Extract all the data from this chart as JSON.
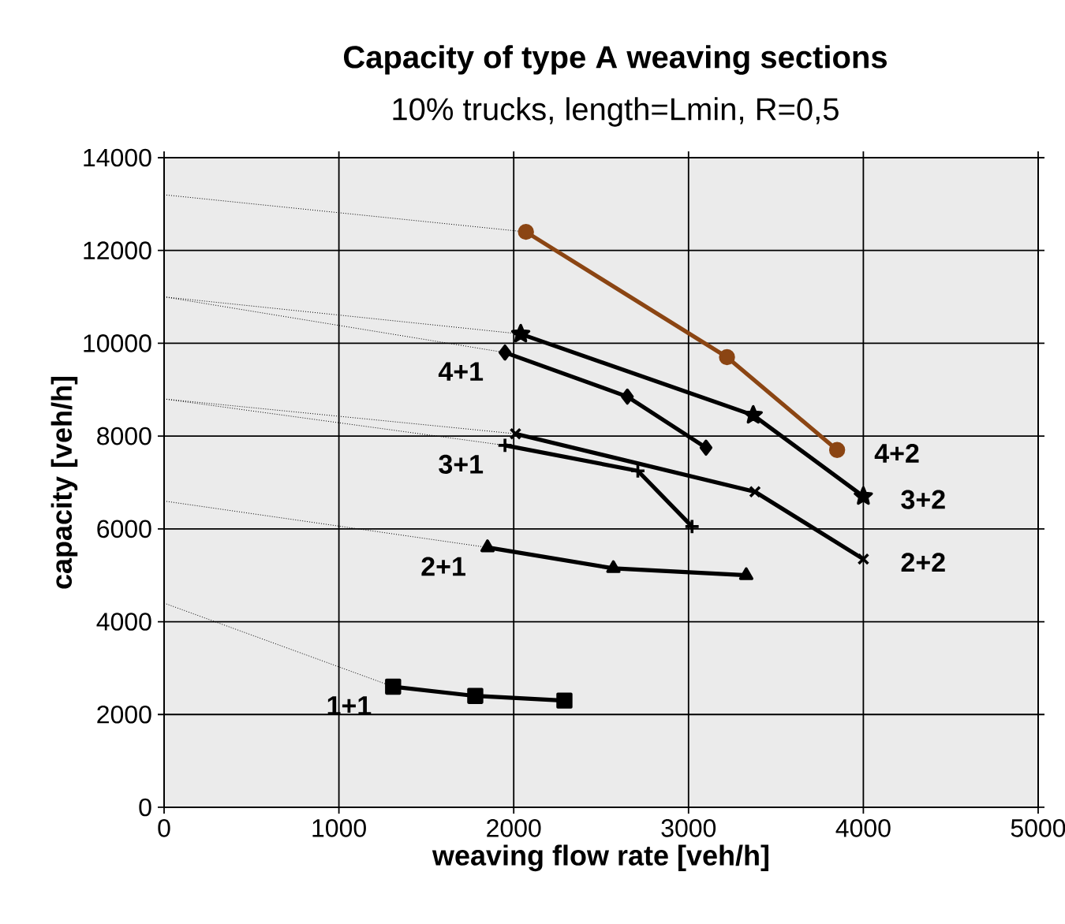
{
  "chart_data": {
    "type": "line",
    "title": "Capacity of type A weaving sections",
    "subtitle": "10% trucks, length=Lmin, R=0,5",
    "xlabel": "weaving flow rate [veh/h]",
    "ylabel": "capacity [veh/h]",
    "xlim": [
      0,
      5000
    ],
    "ylim": [
      0,
      14000
    ],
    "xticks": [
      0,
      1000,
      2000,
      3000,
      4000,
      5000
    ],
    "yticks": [
      0,
      2000,
      4000,
      6000,
      8000,
      10000,
      12000,
      14000
    ],
    "grid": true,
    "series": [
      {
        "name": "4+2",
        "color": "#8b4513",
        "marker": "circle",
        "line_style": "solid",
        "x": [
          2070,
          3220,
          3850
        ],
        "values": [
          12400,
          9700,
          7700
        ]
      },
      {
        "name": "3+2",
        "color": "#000000",
        "marker": "star",
        "line_style": "solid",
        "x": [
          2040,
          3370,
          4000
        ],
        "values": [
          10200,
          8450,
          6700
        ]
      },
      {
        "name": "4+1",
        "color": "#000000",
        "marker": "diamond",
        "line_style": "solid",
        "x": [
          1950,
          2650,
          3100
        ],
        "values": [
          9800,
          8850,
          7750
        ]
      },
      {
        "name": "2+2",
        "color": "#000000",
        "marker": "cross",
        "line_style": "solid",
        "x": [
          2010,
          3380,
          4000
        ],
        "values": [
          8050,
          6800,
          5350
        ]
      },
      {
        "name": "3+1",
        "color": "#000000",
        "marker": "plus",
        "line_style": "solid",
        "x": [
          1950,
          2710,
          3020
        ],
        "values": [
          7800,
          7250,
          6050
        ]
      },
      {
        "name": "2+1",
        "color": "#000000",
        "marker": "triangle",
        "line_style": "solid",
        "x": [
          1850,
          2570,
          3330
        ],
        "values": [
          5600,
          5150,
          5000
        ]
      },
      {
        "name": "1+1",
        "color": "#000000",
        "marker": "square",
        "line_style": "solid",
        "x": [
          1310,
          1780,
          2290
        ],
        "values": [
          2600,
          2400,
          2300
        ]
      },
      {
        "color": "#000000",
        "marker": "none",
        "line_style": "dotted",
        "x": [
          0,
          2070
        ],
        "values": [
          13200,
          12400
        ]
      },
      {
        "color": "#000000",
        "marker": "none",
        "line_style": "dotted",
        "x": [
          0,
          2040
        ],
        "values": [
          11000,
          10200
        ]
      },
      {
        "color": "#000000",
        "marker": "none",
        "line_style": "dotted",
        "x": [
          0,
          1950
        ],
        "values": [
          11000,
          9800
        ]
      },
      {
        "color": "#000000",
        "marker": "none",
        "line_style": "dotted",
        "x": [
          0,
          2010
        ],
        "values": [
          8800,
          8050
        ]
      },
      {
        "color": "#000000",
        "marker": "none",
        "line_style": "dotted",
        "x": [
          0,
          1950
        ],
        "values": [
          8800,
          7800
        ]
      },
      {
        "color": "#000000",
        "marker": "none",
        "line_style": "dotted",
        "x": [
          0,
          1850
        ],
        "values": [
          6600,
          5600
        ]
      },
      {
        "color": "#000000",
        "marker": "none",
        "line_style": "dotted",
        "x": [
          0,
          1310
        ],
        "values": [
          4400,
          2600
        ]
      }
    ]
  }
}
